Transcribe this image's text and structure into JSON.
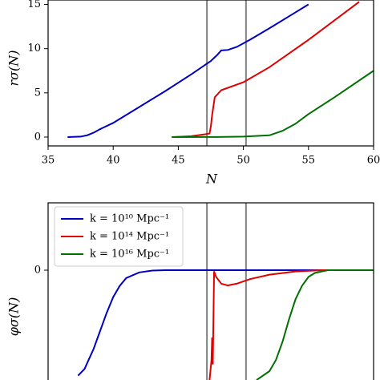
{
  "chart_data": [
    {
      "type": "line",
      "ylabel": "rσ(N)",
      "xlabel": "N",
      "xlim": [
        35,
        60
      ],
      "xticks": [
        35,
        40,
        45,
        50,
        55,
        60
      ],
      "ylim": [
        -1,
        15.5
      ],
      "yticks": [
        0,
        5,
        10,
        15
      ],
      "vlines": [
        47.2,
        50.2
      ],
      "vline_color": "#808080",
      "series": [
        {
          "color": "#0000c0",
          "x": [
            36.5,
            37.5,
            38,
            38.5,
            39,
            40,
            42,
            44,
            46,
            47.5,
            48,
            48.3,
            48.8,
            49.5,
            50.5,
            52,
            54,
            55
          ],
          "values": [
            0,
            0.05,
            0.2,
            0.5,
            0.9,
            1.6,
            3.4,
            5.2,
            7.1,
            8.6,
            9.3,
            9.8,
            9.85,
            10.2,
            11,
            12.3,
            14.1,
            15
          ]
        },
        {
          "color": "#e00000",
          "x": [
            44.5,
            46,
            47,
            47.4,
            47.5,
            47.6,
            47.8,
            48.3,
            50,
            52,
            55,
            58.9
          ],
          "values": [
            0,
            0.1,
            0.3,
            0.4,
            1.2,
            2.5,
            4.5,
            5.3,
            6.2,
            7.9,
            11,
            15.3
          ]
        },
        {
          "color": "#007000",
          "x": [
            44.5,
            48,
            50,
            52,
            53,
            54,
            55,
            57,
            60
          ],
          "values": [
            0,
            0.01,
            0.05,
            0.2,
            0.7,
            1.5,
            2.6,
            4.5,
            7.5
          ]
        }
      ]
    },
    {
      "type": "line",
      "ylabel": "φσ(N)",
      "xlim": [
        35,
        60
      ],
      "ylim": [
        -0.5,
        0.3
      ],
      "yticks": [
        0
      ],
      "vlines": [
        47.2,
        50.2
      ],
      "vline_color": "#808080",
      "legend": "upper left",
      "series": [
        {
          "name": "k = 10¹⁰ Mpc⁻¹",
          "color": "#0000c0",
          "x": [
            37.3,
            37.8,
            38.5,
            39,
            39.5,
            40,
            40.5,
            41,
            42,
            43,
            44,
            60
          ],
          "values": [
            -0.47,
            -0.44,
            -0.35,
            -0.27,
            -0.19,
            -0.12,
            -0.07,
            -0.035,
            -0.01,
            -0.002,
            0,
            0
          ]
        },
        {
          "name": "k = 10¹⁴ Mpc⁻¹",
          "color": "#e00000",
          "x": [
            47.4,
            47.55,
            47.6,
            47.65,
            47.75,
            47.9,
            48.3,
            48.8,
            49.5,
            50.5,
            52,
            54,
            56,
            60
          ],
          "values": [
            -0.49,
            -0.4,
            -0.3,
            -0.42,
            -0.005,
            -0.03,
            -0.06,
            -0.068,
            -0.06,
            -0.04,
            -0.02,
            -0.006,
            0,
            0
          ]
        },
        {
          "name": "k = 10¹⁶ Mpc⁻¹",
          "color": "#007000",
          "x": [
            51,
            52,
            52.5,
            53,
            53.5,
            54,
            54.5,
            55,
            55.5,
            56.5,
            60
          ],
          "values": [
            -0.49,
            -0.45,
            -0.4,
            -0.32,
            -0.22,
            -0.13,
            -0.07,
            -0.03,
            -0.012,
            0,
            0
          ]
        }
      ]
    }
  ]
}
